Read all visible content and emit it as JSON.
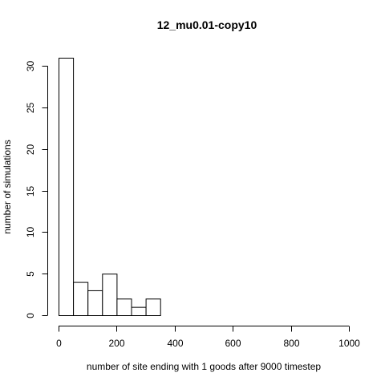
{
  "chart_data": {
    "type": "bar",
    "title": "12_mu0.01-copy10",
    "xlabel": "number of site ending with 1 goods after 9000 timestep",
    "ylabel": "number of simulations",
    "bins": [
      {
        "from": 0,
        "to": 50,
        "count": 31
      },
      {
        "from": 50,
        "to": 100,
        "count": 4
      },
      {
        "from": 100,
        "to": 150,
        "count": 3
      },
      {
        "from": 150,
        "to": 200,
        "count": 5
      },
      {
        "from": 200,
        "to": 250,
        "count": 2
      },
      {
        "from": 250,
        "to": 300,
        "count": 1
      },
      {
        "from": 300,
        "to": 350,
        "count": 2
      }
    ],
    "xlim": [
      0,
      1000
    ],
    "ylim": [
      0,
      31
    ],
    "xticks": [
      0,
      200,
      400,
      600,
      800,
      1000
    ],
    "yticks": [
      0,
      5,
      10,
      15,
      20,
      25,
      30
    ],
    "grid": false,
    "legend": "none"
  }
}
